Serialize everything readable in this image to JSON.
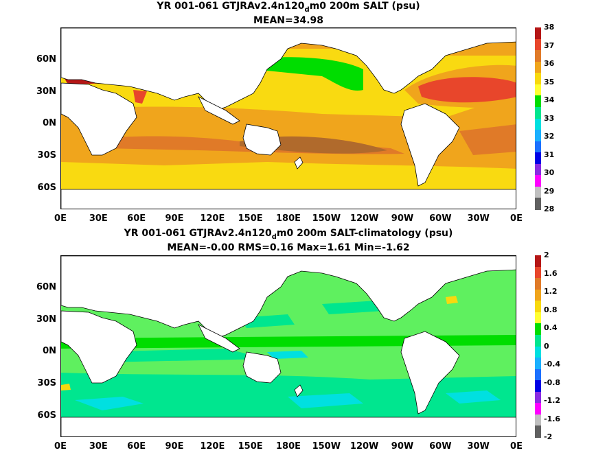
{
  "chart_data": [
    {
      "type": "heatmap",
      "title_parts": {
        "a": "YR 001-061 GTJRAv2.4n120",
        "sub": "d",
        "b": "m0 200m SALT (psu)"
      },
      "subtitle": "MEAN=34.98",
      "xlabels": [
        "0E",
        "30E",
        "60E",
        "90E",
        "120E",
        "150E",
        "180E",
        "150W",
        "120W",
        "90W",
        "60W",
        "30W",
        "0E"
      ],
      "ylabels": [
        "60N",
        "30N",
        "0N",
        "30S",
        "60S"
      ],
      "ylabels_lat": [
        60,
        30,
        0,
        -30,
        -60
      ],
      "lat_range": [
        -80,
        90
      ],
      "colorbar": {
        "ticks": [
          "38",
          "37",
          "36",
          "35",
          "34",
          "33",
          "32",
          "31",
          "30",
          "29",
          "28"
        ],
        "colors": [
          "#b51616",
          "#e8462b",
          "#e07a28",
          "#f0a51c",
          "#f8d90e",
          "#ffff33",
          "#00dd00",
          "#00e68f",
          "#00e0e0",
          "#1ab0ff",
          "#1b70ff",
          "#0000e6",
          "#8a2be2",
          "#ff00ff",
          "#c0c0c0",
          "#606060"
        ]
      },
      "background_color": "#f9da11",
      "land_color": "#ffffff"
    },
    {
      "type": "heatmap",
      "title_parts": {
        "a": "YR 001-061 GTJRAv2.4n120",
        "sub": "d",
        "b": "m0 200m SALT-climatology (psu)"
      },
      "subtitle": "MEAN=-0.00   RMS=0.16   Max=1.61   Min=-1.62",
      "xlabels": [
        "0E",
        "30E",
        "60E",
        "90E",
        "120E",
        "150E",
        "180E",
        "150W",
        "120W",
        "90W",
        "60W",
        "30W",
        "0E"
      ],
      "ylabels": [
        "60N",
        "30N",
        "0N",
        "30S",
        "60S"
      ],
      "ylabels_lat": [
        60,
        30,
        0,
        -30,
        -60
      ],
      "lat_range": [
        -80,
        90
      ],
      "colorbar": {
        "ticks": [
          "2",
          "1.6",
          "1.2",
          "0.8",
          "0.4",
          "0",
          "-0.4",
          "-0.8",
          "-1.2",
          "-1.6",
          "-2"
        ],
        "colors": [
          "#b51616",
          "#e8462b",
          "#e07a28",
          "#f0a51c",
          "#f8d90e",
          "#ffff33",
          "#00dd00",
          "#00e68f",
          "#00e0e0",
          "#1ab0ff",
          "#1b70ff",
          "#0000e6",
          "#8a2be2",
          "#ff00ff",
          "#c0c0c0",
          "#606060"
        ]
      },
      "background_color": "#5ff05f",
      "land_color": "#ffffff"
    }
  ]
}
